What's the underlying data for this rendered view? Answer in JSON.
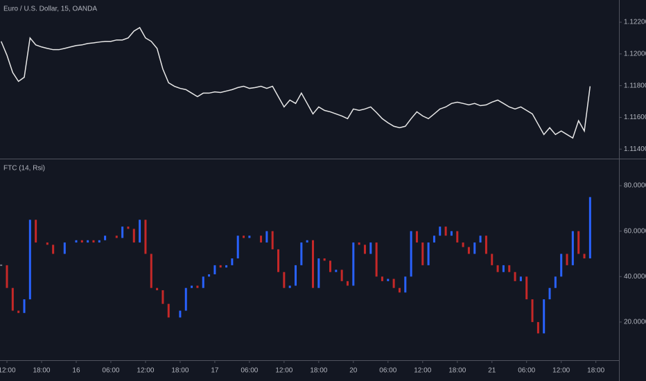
{
  "chart_data": [
    {
      "type": "line",
      "title": "Euro / U.S. Dollar, 15, OANDA",
      "color": "#e8e8e8",
      "x": [
        -1,
        0,
        1,
        2,
        3,
        4,
        5,
        6,
        7,
        8,
        9,
        10,
        11,
        12,
        13,
        14,
        15,
        16,
        17,
        18,
        19,
        20,
        21,
        22,
        23,
        24,
        25,
        26,
        27,
        28,
        29,
        30,
        31,
        32,
        33,
        34,
        35,
        36,
        37,
        38,
        39,
        40,
        41,
        42,
        43,
        44,
        45,
        46,
        47,
        48,
        49,
        50,
        51,
        52,
        53,
        54,
        55,
        56,
        57,
        58,
        59,
        60,
        61,
        62,
        63,
        64,
        65,
        66,
        67,
        68,
        69,
        70,
        71,
        72,
        73,
        74,
        75,
        76,
        77,
        78,
        79,
        80,
        81,
        82,
        83,
        84,
        85,
        86,
        87,
        88,
        89,
        90,
        91,
        92,
        93,
        94,
        95,
        96,
        97,
        98,
        99,
        100,
        101
      ],
      "values": [
        1.12079,
        1.11992,
        1.11883,
        1.11827,
        1.11853,
        1.12101,
        1.12057,
        1.12044,
        1.12035,
        1.12027,
        1.12027,
        1.12035,
        1.12044,
        1.12053,
        1.12057,
        1.12066,
        1.1207,
        1.12075,
        1.12079,
        1.12079,
        1.12088,
        1.12088,
        1.12101,
        1.12144,
        1.12166,
        1.12101,
        1.12079,
        1.12035,
        1.11905,
        1.11818,
        1.11796,
        1.11783,
        1.11775,
        1.11753,
        1.11731,
        1.11753,
        1.11753,
        1.11761,
        1.11757,
        1.11766,
        1.11775,
        1.11788,
        1.11796,
        1.11783,
        1.11788,
        1.11796,
        1.11783,
        1.11796,
        1.11731,
        1.11666,
        1.11709,
        1.11688,
        1.11753,
        1.11688,
        1.11622,
        1.11666,
        1.11644,
        1.11635,
        1.11622,
        1.11609,
        1.11592,
        1.11653,
        1.11644,
        1.11653,
        1.11666,
        1.11631,
        1.11592,
        1.11566,
        1.11544,
        1.11535,
        1.11544,
        1.11592,
        1.11635,
        1.11609,
        1.11592,
        1.11622,
        1.11653,
        1.11666,
        1.11688,
        1.11696,
        1.11688,
        1.11679,
        1.11688,
        1.11674,
        1.11679,
        1.11696,
        1.11709,
        1.11688,
        1.11666,
        1.11653,
        1.11666,
        1.11644,
        1.11622,
        1.11557,
        1.11492,
        1.11535,
        1.11492,
        1.11514,
        1.11492,
        1.1147,
        1.11579,
        1.11514,
        1.11796
      ],
      "xlim": [
        -1.2,
        106
      ],
      "ylim": [
        1.1134,
        1.1234
      ],
      "yticks": [
        {
          "value": 1.114,
          "label": "1.11400"
        },
        {
          "value": 1.116,
          "label": "1.11600"
        },
        {
          "value": 1.118,
          "label": "1.11800"
        },
        {
          "value": 1.12,
          "label": "1.12000"
        },
        {
          "value": 1.122,
          "label": "1.12200"
        }
      ]
    },
    {
      "type": "bar",
      "title": "FTC (14, Rsi)",
      "up_color": "#2962ff",
      "down_color": "#c62828",
      "x": [
        -1,
        0,
        1,
        2,
        3,
        4,
        5,
        6,
        7,
        8,
        9,
        10,
        11,
        12,
        13,
        14,
        15,
        16,
        17,
        18,
        19,
        20,
        21,
        22,
        23,
        24,
        25,
        26,
        27,
        28,
        29,
        30,
        31,
        32,
        33,
        34,
        35,
        36,
        37,
        38,
        39,
        40,
        41,
        42,
        43,
        44,
        45,
        46,
        47,
        48,
        49,
        50,
        51,
        52,
        53,
        54,
        55,
        56,
        57,
        58,
        59,
        60,
        61,
        62,
        63,
        64,
        65,
        66,
        67,
        68,
        69,
        70,
        71,
        72,
        73,
        74,
        75,
        76,
        77,
        78,
        79,
        80,
        81,
        82,
        83,
        84,
        85,
        86,
        87,
        88,
        89,
        90,
        91,
        92,
        93,
        94,
        95,
        96,
        97,
        98,
        99,
        100,
        101
      ],
      "values": [
        45,
        35,
        25,
        24,
        30,
        65,
        55,
        55,
        54,
        50,
        50,
        55,
        55,
        56,
        55,
        56,
        55,
        56,
        58,
        58,
        57,
        62,
        61,
        55,
        65,
        50,
        35,
        34,
        28,
        22,
        22,
        25,
        35,
        36,
        35,
        40,
        41,
        45,
        44,
        45,
        48,
        58,
        57,
        58,
        58,
        55,
        60,
        52,
        42,
        35,
        36,
        45,
        55,
        56,
        35,
        48,
        47,
        42,
        43,
        38,
        36,
        55,
        54,
        50,
        55,
        40,
        38,
        39,
        35,
        33,
        40,
        60,
        55,
        45,
        55,
        58,
        62,
        58,
        60,
        55,
        53,
        50,
        55,
        58,
        50,
        45,
        42,
        45,
        42,
        38,
        40,
        30,
        20,
        15,
        30,
        35,
        40,
        50,
        45,
        60,
        50,
        48,
        75
      ],
      "xlim": [
        -1.2,
        106
      ],
      "ylim": [
        3.2,
        91.6
      ],
      "yticks": [
        {
          "value": 20,
          "label": "20.00000"
        },
        {
          "value": 40,
          "label": "40.00000"
        },
        {
          "value": 60,
          "label": "60.00000"
        },
        {
          "value": 80,
          "label": "80.00000"
        }
      ],
      "xticks": [
        {
          "value": 0,
          "label": "12:00"
        },
        {
          "value": 6,
          "label": "18:00"
        },
        {
          "value": 12,
          "label": "16"
        },
        {
          "value": 18,
          "label": "06:00"
        },
        {
          "value": 24,
          "label": "12:00"
        },
        {
          "value": 30,
          "label": "18:00"
        },
        {
          "value": 36,
          "label": "17"
        },
        {
          "value": 42,
          "label": "06:00"
        },
        {
          "value": 48,
          "label": "12:00"
        },
        {
          "value": 54,
          "label": "18:00"
        },
        {
          "value": 60,
          "label": "20"
        },
        {
          "value": 66,
          "label": "06:00"
        },
        {
          "value": 72,
          "label": "12:00"
        },
        {
          "value": 78,
          "label": "18:00"
        },
        {
          "value": 84,
          "label": "21"
        },
        {
          "value": 90,
          "label": "06:00"
        },
        {
          "value": 96,
          "label": "12:00"
        },
        {
          "value": 102,
          "label": "18:00"
        }
      ]
    }
  ]
}
